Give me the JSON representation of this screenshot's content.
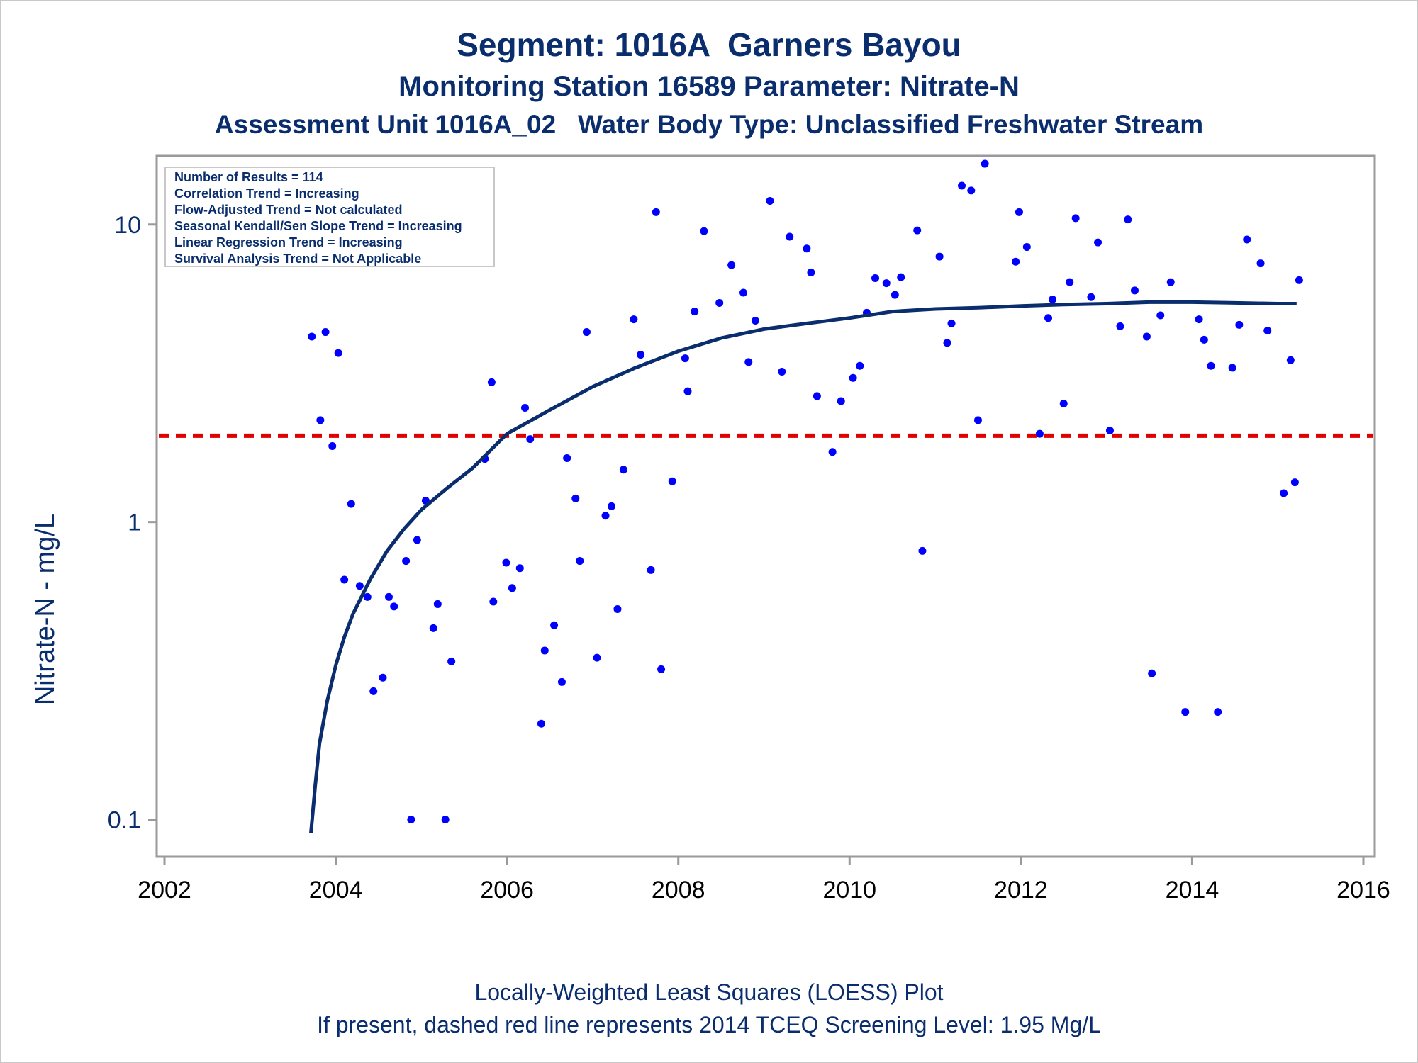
{
  "titles": {
    "line1": "Segment: 1016A  Garners Bayou",
    "line2": "Monitoring Station 16589 Parameter: Nitrate-N",
    "line3": "Assessment Unit 1016A_02   Water Body Type: Unclassified Freshwater Stream"
  },
  "footnotes": {
    "line1": "Locally-Weighted Least Squares (LOESS) Plot",
    "line2": "If present, dashed red line represents 2014 TCEQ Screening Level: 1.95 Mg/L"
  },
  "legend": {
    "lines": [
      "Number of Results = 114",
      "Correlation Trend = Increasing",
      "Flow-Adjusted Trend = Not calculated",
      "Seasonal Kendall/Sen Slope Trend = Increasing",
      "Linear Regression Trend = Increasing",
      "Survival Analysis Trend = Not Applicable"
    ]
  },
  "colors": {
    "text": "#0a2d6e",
    "points": "#0000ff",
    "loess": "#0a2d6e",
    "screening": "#e00000",
    "axis": "#9a9a9a"
  },
  "chart_data": {
    "type": "scatter",
    "ylabel": "Nitrate-N - mg/L",
    "xlabel": "",
    "xlim": [
      2002,
      2016
    ],
    "ylim": [
      0.075,
      17
    ],
    "yscale": "log",
    "xticks": [
      2002,
      2004,
      2006,
      2008,
      2010,
      2012,
      2014,
      2016
    ],
    "yticks": [
      0.1,
      1,
      10
    ],
    "ytick_labels": [
      "0.1",
      "1",
      "10"
    ],
    "screening_level": 1.95,
    "points": [
      [
        2003.72,
        4.2
      ],
      [
        2003.82,
        2.2
      ],
      [
        2003.88,
        4.35
      ],
      [
        2003.96,
        1.8
      ],
      [
        2004.03,
        3.7
      ],
      [
        2004.1,
        0.64
      ],
      [
        2004.18,
        1.15
      ],
      [
        2004.28,
        0.61
      ],
      [
        2004.37,
        0.56
      ],
      [
        2004.44,
        0.27
      ],
      [
        2004.55,
        0.3
      ],
      [
        2004.62,
        0.56
      ],
      [
        2004.68,
        0.52
      ],
      [
        2004.82,
        0.74
      ],
      [
        2004.88,
        0.1
      ],
      [
        2004.95,
        0.87
      ],
      [
        2005.05,
        1.18
      ],
      [
        2005.14,
        0.44
      ],
      [
        2005.19,
        0.53
      ],
      [
        2005.28,
        0.1
      ],
      [
        2005.35,
        0.34
      ],
      [
        2005.74,
        1.63
      ],
      [
        2005.82,
        2.95
      ],
      [
        2005.84,
        0.54
      ],
      [
        2005.99,
        0.73
      ],
      [
        2006.06,
        0.6
      ],
      [
        2006.15,
        0.7
      ],
      [
        2006.21,
        2.42
      ],
      [
        2006.27,
        1.9
      ],
      [
        2006.4,
        0.21
      ],
      [
        2006.44,
        0.37
      ],
      [
        2006.55,
        0.45
      ],
      [
        2006.64,
        0.29
      ],
      [
        2006.7,
        1.64
      ],
      [
        2006.8,
        1.2
      ],
      [
        2006.85,
        0.74
      ],
      [
        2006.93,
        4.35
      ],
      [
        2007.05,
        0.35
      ],
      [
        2007.15,
        1.05
      ],
      [
        2007.22,
        1.13
      ],
      [
        2007.29,
        0.51
      ],
      [
        2007.36,
        1.5
      ],
      [
        2007.48,
        4.8
      ],
      [
        2007.56,
        3.65
      ],
      [
        2007.68,
        0.69
      ],
      [
        2007.74,
        11.0
      ],
      [
        2007.8,
        0.32
      ],
      [
        2007.93,
        1.37
      ],
      [
        2008.08,
        3.55
      ],
      [
        2008.11,
        2.75
      ],
      [
        2008.19,
        5.1
      ],
      [
        2008.3,
        9.5
      ],
      [
        2008.48,
        5.45
      ],
      [
        2008.62,
        7.3
      ],
      [
        2008.76,
        5.9
      ],
      [
        2008.82,
        3.45
      ],
      [
        2008.9,
        4.75
      ],
      [
        2009.07,
        12.0
      ],
      [
        2009.21,
        3.2
      ],
      [
        2009.3,
        9.1
      ],
      [
        2009.5,
        8.3
      ],
      [
        2009.55,
        6.9
      ],
      [
        2009.62,
        2.65
      ],
      [
        2009.8,
        1.72
      ],
      [
        2009.9,
        2.55
      ],
      [
        2010.04,
        3.05
      ],
      [
        2010.12,
        3.35
      ],
      [
        2010.2,
        5.05
      ],
      [
        2010.3,
        6.6
      ],
      [
        2010.43,
        6.35
      ],
      [
        2010.53,
        5.8
      ],
      [
        2010.6,
        6.65
      ],
      [
        2010.79,
        9.55
      ],
      [
        2010.85,
        0.8
      ],
      [
        2011.05,
        7.8
      ],
      [
        2011.14,
        4.0
      ],
      [
        2011.19,
        4.65
      ],
      [
        2011.31,
        13.5
      ],
      [
        2011.42,
        13.0
      ],
      [
        2011.5,
        2.2
      ],
      [
        2011.58,
        16.0
      ],
      [
        2011.94,
        7.5
      ],
      [
        2011.98,
        11.0
      ],
      [
        2012.07,
        8.4
      ],
      [
        2012.22,
        1.98
      ],
      [
        2012.32,
        4.85
      ],
      [
        2012.37,
        5.6
      ],
      [
        2012.5,
        2.5
      ],
      [
        2012.57,
        6.4
      ],
      [
        2012.64,
        10.5
      ],
      [
        2012.82,
        5.7
      ],
      [
        2012.9,
        8.7
      ],
      [
        2013.04,
        2.03
      ],
      [
        2013.16,
        4.55
      ],
      [
        2013.25,
        10.4
      ],
      [
        2013.33,
        6.0
      ],
      [
        2013.47,
        4.2
      ],
      [
        2013.53,
        0.31
      ],
      [
        2013.63,
        4.95
      ],
      [
        2013.75,
        6.4
      ],
      [
        2013.92,
        0.23
      ],
      [
        2014.08,
        4.8
      ],
      [
        2014.14,
        4.1
      ],
      [
        2014.22,
        3.35
      ],
      [
        2014.3,
        0.23
      ],
      [
        2014.47,
        3.3
      ],
      [
        2014.55,
        4.6
      ],
      [
        2014.64,
        8.9
      ],
      [
        2014.8,
        7.4
      ],
      [
        2014.88,
        4.4
      ],
      [
        2015.07,
        1.25
      ],
      [
        2015.15,
        3.5
      ],
      [
        2015.2,
        1.36
      ],
      [
        2015.25,
        6.5
      ]
    ],
    "series": [
      {
        "type": "loess",
        "points": [
          [
            2003.71,
            0.09
          ],
          [
            2003.76,
            0.13
          ],
          [
            2003.81,
            0.18
          ],
          [
            2003.9,
            0.25
          ],
          [
            2004.0,
            0.33
          ],
          [
            2004.1,
            0.41
          ],
          [
            2004.2,
            0.49
          ],
          [
            2004.4,
            0.64
          ],
          [
            2004.6,
            0.8
          ],
          [
            2004.8,
            0.95
          ],
          [
            2005.0,
            1.1
          ],
          [
            2005.3,
            1.3
          ],
          [
            2005.6,
            1.52
          ],
          [
            2006.0,
            1.98
          ],
          [
            2006.5,
            2.38
          ],
          [
            2007.0,
            2.85
          ],
          [
            2007.5,
            3.3
          ],
          [
            2008.0,
            3.75
          ],
          [
            2008.5,
            4.15
          ],
          [
            2009.0,
            4.45
          ],
          [
            2009.5,
            4.65
          ],
          [
            2010.0,
            4.85
          ],
          [
            2010.5,
            5.1
          ],
          [
            2011.0,
            5.2
          ],
          [
            2011.5,
            5.25
          ],
          [
            2012.0,
            5.32
          ],
          [
            2012.5,
            5.38
          ],
          [
            2013.0,
            5.42
          ],
          [
            2013.5,
            5.48
          ],
          [
            2014.0,
            5.48
          ],
          [
            2014.5,
            5.45
          ],
          [
            2015.0,
            5.42
          ],
          [
            2015.22,
            5.42
          ]
        ]
      }
    ]
  }
}
